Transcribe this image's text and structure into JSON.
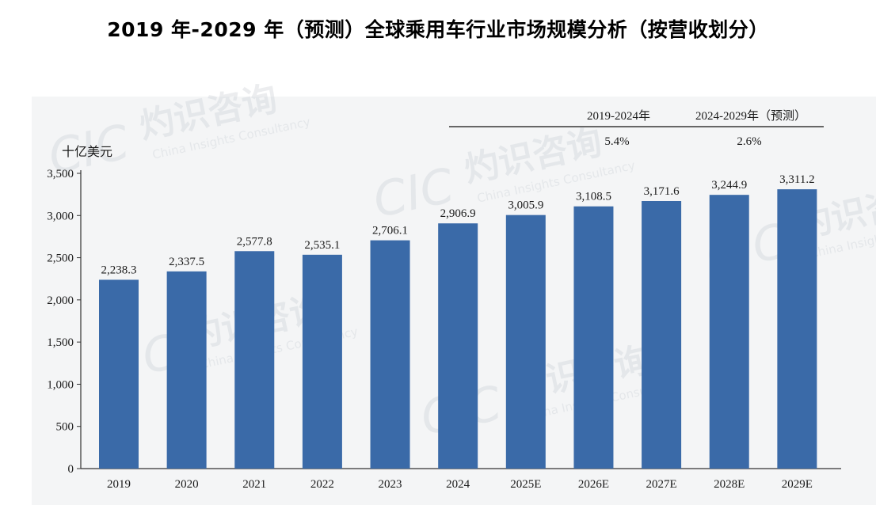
{
  "title": "2019 年-2029 年（预测）全球乘用车行业市场规模分析（按营收划分）",
  "watermark": {
    "cn": "灼识咨询",
    "en": "China Insights Consultancy",
    "logo": "CIC"
  },
  "colors": {
    "bar": "#3a6aa8",
    "axis": "#333333",
    "text": "#1a1a1a"
  },
  "chart_data": {
    "type": "bar",
    "ylabel": "十亿美元",
    "ylim": [
      0,
      3500
    ],
    "yticks": [
      "0",
      "500",
      "1,000",
      "1,500",
      "2,000",
      "2,500",
      "3,000",
      "3,500"
    ],
    "ytick_values": [
      0,
      500,
      1000,
      1500,
      2000,
      2500,
      3000,
      3500
    ],
    "categories": [
      "2019",
      "2020",
      "2021",
      "2022",
      "2023",
      "2024",
      "2025E",
      "2026E",
      "2027E",
      "2028E",
      "2029E"
    ],
    "values": [
      2238.3,
      2337.5,
      2577.8,
      2535.1,
      2706.1,
      2906.9,
      3005.9,
      3108.5,
      3171.6,
      3244.9,
      3311.2
    ],
    "value_labels": [
      "2,238.3",
      "2,337.5",
      "2,577.8",
      "2,535.1",
      "2,706.1",
      "2,906.9",
      "3,005.9",
      "3,108.5",
      "3,171.6",
      "3,244.9",
      "3,311.2"
    ],
    "grid": false,
    "cagr": [
      {
        "period": "2019-2024年",
        "rate": "5.4%"
      },
      {
        "period": "2024-2029年（预测）",
        "rate": "2.6%"
      }
    ]
  }
}
